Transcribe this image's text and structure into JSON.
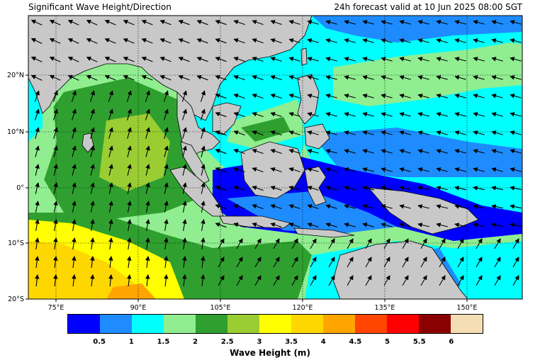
{
  "header": {
    "title_left": "Significant Wave Height/Direction",
    "title_right": "24h forecast valid at 10 Jun 2025 08:00 SGT"
  },
  "axes": {
    "lon_labels": [
      "75°E",
      "90°E",
      "105°E",
      "120°E",
      "135°E",
      "150°E"
    ],
    "lat_labels": [
      "20°N",
      "10°N",
      "0°",
      "10°S",
      "20°S"
    ]
  },
  "colorbar": {
    "title": "Wave Height (m)",
    "colors": [
      "#0000ff",
      "#1e8cff",
      "#00ffff",
      "#90ee90",
      "#2fa02f",
      "#9acd32",
      "#ffff00",
      "#ffd700",
      "#ffa500",
      "#ff4500",
      "#ff0000",
      "#8b0000",
      "#f5deb3"
    ],
    "labels": [
      "0.5",
      "1",
      "1.5",
      "2",
      "2.5",
      "3",
      "3.5",
      "4",
      "4.5",
      "5",
      "5.5",
      "6"
    ]
  },
  "colors": {
    "land": "#c8c8c8",
    "coast": "#000000",
    "grid": "#000000"
  }
}
